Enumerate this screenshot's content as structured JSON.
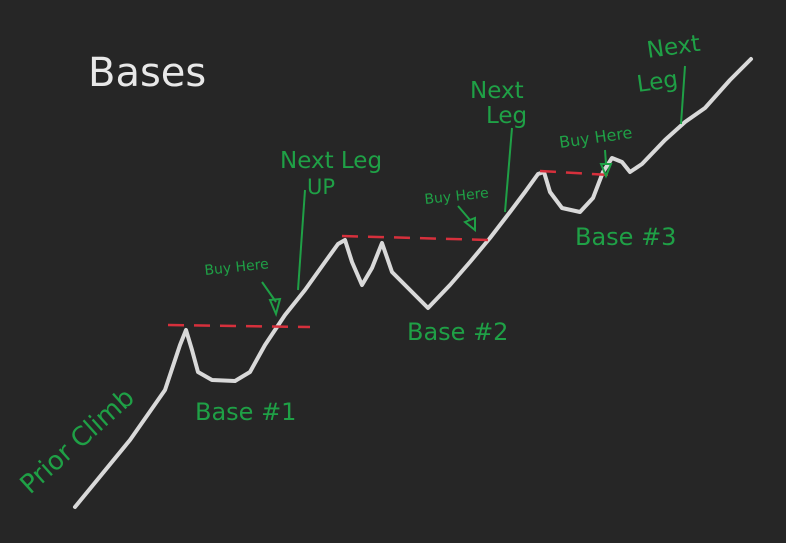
{
  "title": "Bases",
  "colors": {
    "background": "#262626",
    "price_line": "#d9d9d9",
    "annotation": "#1fa046",
    "resistance": "#d6303c",
    "title": "#e8e8e8"
  },
  "labels": {
    "prior_climb": "Prior Climb",
    "base1": "Base #1",
    "base2": "Base #2",
    "base3": "Base #3",
    "buy_here_1": "Buy Here",
    "buy_here_2": "Buy Here",
    "buy_here_3": "Buy Here",
    "next_leg_1_line1": "Next Leg",
    "next_leg_1_line2": "UP",
    "next_leg_2_line1": "Next",
    "next_leg_2_line2": "Leg",
    "next_leg_3_line1": "Next",
    "next_leg_3_line2": "Leg"
  }
}
